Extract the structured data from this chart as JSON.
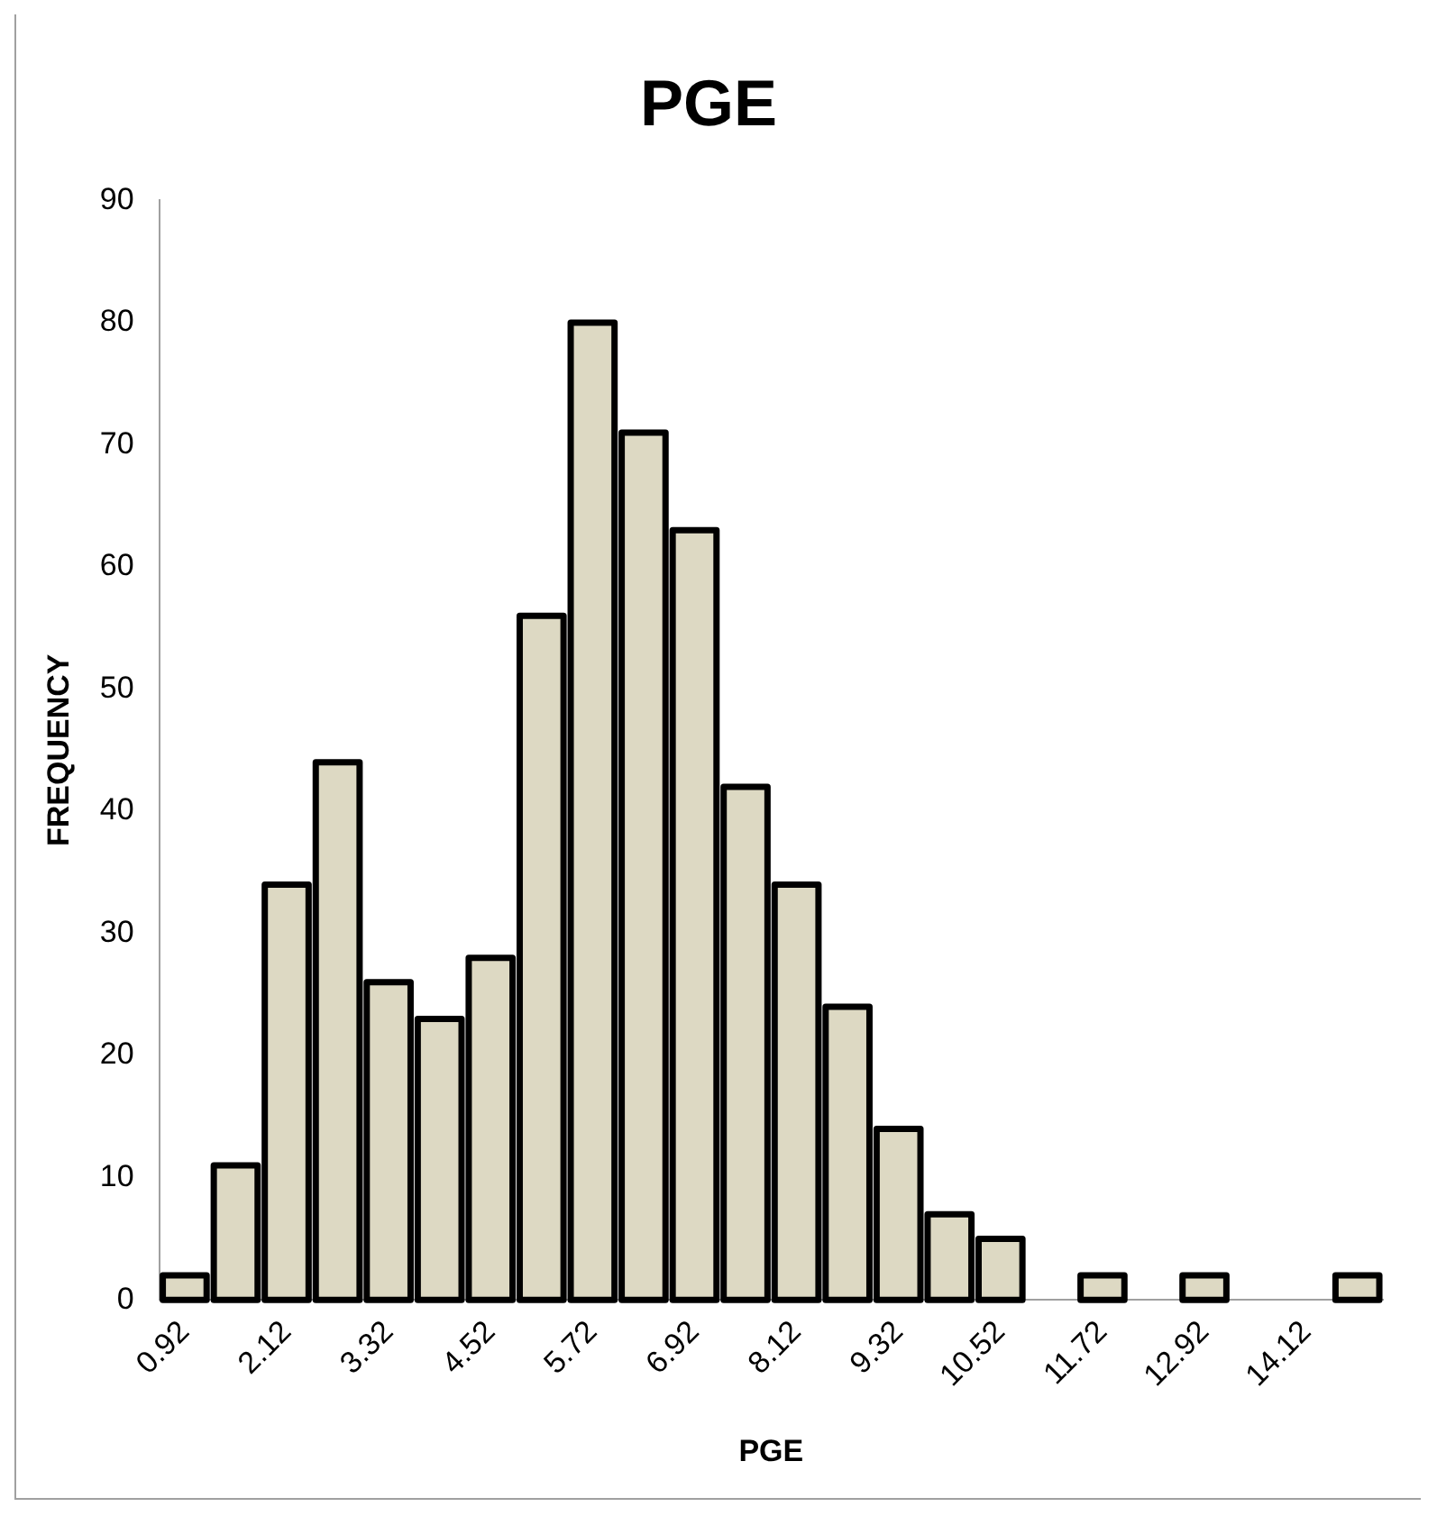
{
  "chart_data": {
    "type": "bar",
    "title": "PGE",
    "xlabel": "PGE",
    "ylabel": "FREQUENCY",
    "categories": [
      "0.92",
      null,
      "2.12",
      null,
      "3.32",
      null,
      "4.52",
      null,
      "5.72",
      null,
      "6.92",
      null,
      "8.12",
      null,
      "9.32",
      null,
      "10.52",
      null,
      "11.72",
      null,
      "12.92",
      null,
      "14.12",
      null
    ],
    "values": [
      2,
      11,
      34,
      44,
      26,
      23,
      28,
      56,
      80,
      71,
      63,
      42,
      34,
      24,
      14,
      7,
      5,
      0,
      2,
      0,
      2,
      0,
      0,
      2
    ],
    "color": "#ddd9c3",
    "ylim": [
      0,
      90
    ],
    "yticks": [
      0,
      10,
      20,
      30,
      40,
      50,
      60,
      70,
      80,
      90
    ],
    "grid": false,
    "legend": false
  }
}
